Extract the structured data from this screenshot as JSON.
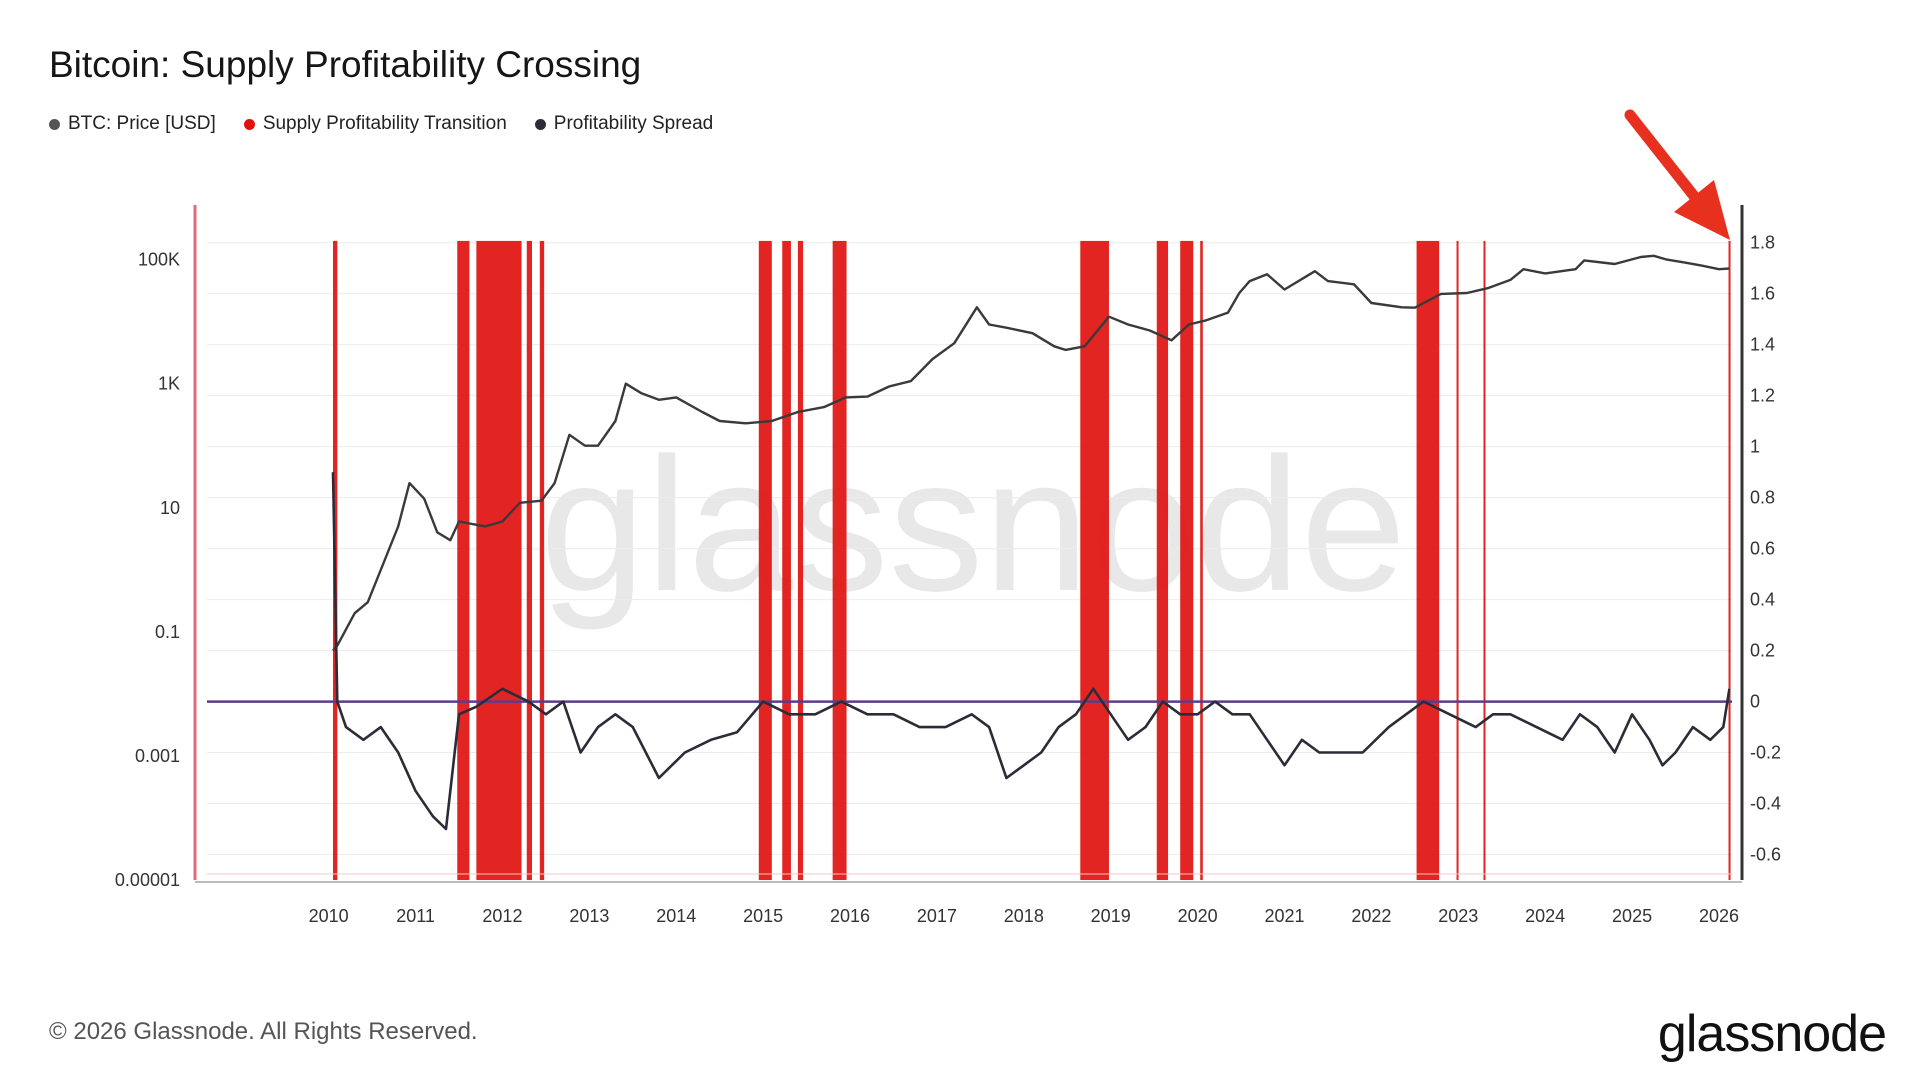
{
  "title": "Bitcoin: Supply Profitability Crossing",
  "legend": [
    {
      "label": "BTC: Price [USD]",
      "color": "#555555"
    },
    {
      "label": "Supply Profitability Transition",
      "color": "#e0120f"
    },
    {
      "label": "Profitability Spread",
      "color": "#2c2c38"
    }
  ],
  "footer": "© 2026 Glassnode. All Rights Reserved.",
  "logo": "glassnode",
  "watermark": "glassnode",
  "chart_data": {
    "type": "line",
    "x_ticks": [
      "2010",
      "2011",
      "2012",
      "2013",
      "2014",
      "2015",
      "2016",
      "2017",
      "2018",
      "2019",
      "2020",
      "2021",
      "2022",
      "2023",
      "2024",
      "2025",
      "2026"
    ],
    "x_range": [
      2009.1,
      2026.65
    ],
    "left_axis": {
      "scale": "log",
      "ticks": [
        "0.00001",
        "0.001",
        "0.1",
        "10",
        "1K",
        "100K"
      ],
      "range": [
        1e-05,
        300000
      ]
    },
    "right_axis": {
      "ticks": [
        "1.8",
        "1.6",
        "1.4",
        "1.2",
        "1",
        "0.8",
        "0.6",
        "0.4",
        "0.2",
        "0",
        "-0.2",
        "-0.4",
        "-0.6"
      ],
      "range": [
        -0.7,
        1.85
      ]
    },
    "reference_line": {
      "value": 0,
      "color": "#5b3c8c"
    },
    "series": [
      {
        "name": "BTC: Price [USD]",
        "axis": "left",
        "color": "#3a3a3a",
        "points": [
          [
            2010.55,
            0.05
          ],
          [
            2010.6,
            0.06
          ],
          [
            2010.8,
            0.2
          ],
          [
            2010.95,
            0.3
          ],
          [
            2011.1,
            1
          ],
          [
            2011.3,
            5
          ],
          [
            2011.43,
            25
          ],
          [
            2011.6,
            14
          ],
          [
            2011.75,
            4
          ],
          [
            2011.9,
            3
          ],
          [
            2012.0,
            6
          ],
          [
            2012.3,
            5
          ],
          [
            2012.5,
            6
          ],
          [
            2012.7,
            12
          ],
          [
            2012.95,
            13
          ],
          [
            2013.1,
            25
          ],
          [
            2013.27,
            150
          ],
          [
            2013.45,
            100
          ],
          [
            2013.6,
            100
          ],
          [
            2013.8,
            250
          ],
          [
            2013.92,
            1000
          ],
          [
            2014.1,
            700
          ],
          [
            2014.3,
            550
          ],
          [
            2014.5,
            600
          ],
          [
            2014.8,
            350
          ],
          [
            2015.0,
            250
          ],
          [
            2015.3,
            230
          ],
          [
            2015.6,
            250
          ],
          [
            2015.9,
            350
          ],
          [
            2016.2,
            420
          ],
          [
            2016.45,
            600
          ],
          [
            2016.7,
            620
          ],
          [
            2016.95,
            900
          ],
          [
            2017.2,
            1100
          ],
          [
            2017.45,
            2500
          ],
          [
            2017.7,
            4500
          ],
          [
            2017.96,
            17000
          ],
          [
            2018.1,
            9000
          ],
          [
            2018.3,
            8000
          ],
          [
            2018.6,
            6500
          ],
          [
            2018.85,
            4000
          ],
          [
            2018.98,
            3500
          ],
          [
            2019.2,
            4000
          ],
          [
            2019.48,
            12000
          ],
          [
            2019.7,
            9000
          ],
          [
            2019.95,
            7200
          ],
          [
            2020.2,
            5000
          ],
          [
            2020.4,
            9000
          ],
          [
            2020.6,
            10500
          ],
          [
            2020.85,
            14000
          ],
          [
            2020.98,
            29000
          ],
          [
            2021.1,
            45000
          ],
          [
            2021.3,
            58000
          ],
          [
            2021.5,
            33000
          ],
          [
            2021.85,
            65000
          ],
          [
            2022.0,
            45000
          ],
          [
            2022.3,
            40000
          ],
          [
            2022.5,
            20000
          ],
          [
            2022.85,
            17000
          ],
          [
            2023.0,
            16800
          ],
          [
            2023.3,
            28000
          ],
          [
            2023.6,
            29000
          ],
          [
            2023.85,
            35000
          ],
          [
            2024.1,
            47000
          ],
          [
            2024.25,
            70000
          ],
          [
            2024.5,
            60000
          ],
          [
            2024.85,
            70000
          ],
          [
            2024.95,
            97000
          ],
          [
            2025.3,
            85000
          ],
          [
            2025.6,
            110000
          ],
          [
            2025.75,
            115000
          ],
          [
            2025.9,
            100000
          ],
          [
            2026.1,
            90000
          ],
          [
            2026.3,
            80000
          ],
          [
            2026.5,
            70000
          ],
          [
            2026.62,
            72000
          ]
        ]
      },
      {
        "name": "Profitability Spread",
        "axis": "right",
        "color": "#2c2c38",
        "points": [
          [
            2010.55,
            0.9
          ],
          [
            2010.6,
            0.0
          ],
          [
            2010.7,
            -0.1
          ],
          [
            2010.9,
            -0.15
          ],
          [
            2011.1,
            -0.1
          ],
          [
            2011.3,
            -0.2
          ],
          [
            2011.5,
            -0.35
          ],
          [
            2011.7,
            -0.45
          ],
          [
            2011.85,
            -0.5
          ],
          [
            2012.0,
            -0.05
          ],
          [
            2012.2,
            -0.02
          ],
          [
            2012.5,
            0.05
          ],
          [
            2012.8,
            0.0
          ],
          [
            2013.0,
            -0.05
          ],
          [
            2013.2,
            0.0
          ],
          [
            2013.4,
            -0.2
          ],
          [
            2013.6,
            -0.1
          ],
          [
            2013.8,
            -0.05
          ],
          [
            2014.0,
            -0.1
          ],
          [
            2014.3,
            -0.3
          ],
          [
            2014.6,
            -0.2
          ],
          [
            2014.9,
            -0.15
          ],
          [
            2015.2,
            -0.12
          ],
          [
            2015.5,
            0.0
          ],
          [
            2015.8,
            -0.05
          ],
          [
            2016.1,
            -0.05
          ],
          [
            2016.4,
            0.0
          ],
          [
            2016.7,
            -0.05
          ],
          [
            2017.0,
            -0.05
          ],
          [
            2017.3,
            -0.1
          ],
          [
            2017.6,
            -0.1
          ],
          [
            2017.9,
            -0.05
          ],
          [
            2018.1,
            -0.1
          ],
          [
            2018.3,
            -0.3
          ],
          [
            2018.5,
            -0.25
          ],
          [
            2018.7,
            -0.2
          ],
          [
            2018.9,
            -0.1
          ],
          [
            2019.1,
            -0.05
          ],
          [
            2019.3,
            0.05
          ],
          [
            2019.5,
            -0.05
          ],
          [
            2019.7,
            -0.15
          ],
          [
            2019.9,
            -0.1
          ],
          [
            2020.1,
            0.0
          ],
          [
            2020.3,
            -0.05
          ],
          [
            2020.5,
            -0.05
          ],
          [
            2020.7,
            0.0
          ],
          [
            2020.9,
            -0.05
          ],
          [
            2021.1,
            -0.05
          ],
          [
            2021.3,
            -0.15
          ],
          [
            2021.5,
            -0.25
          ],
          [
            2021.7,
            -0.15
          ],
          [
            2021.9,
            -0.2
          ],
          [
            2022.1,
            -0.2
          ],
          [
            2022.4,
            -0.2
          ],
          [
            2022.7,
            -0.1
          ],
          [
            2022.9,
            -0.05
          ],
          [
            2023.1,
            0.0
          ],
          [
            2023.4,
            -0.05
          ],
          [
            2023.7,
            -0.1
          ],
          [
            2023.9,
            -0.05
          ],
          [
            2024.1,
            -0.05
          ],
          [
            2024.4,
            -0.1
          ],
          [
            2024.7,
            -0.15
          ],
          [
            2024.9,
            -0.05
          ],
          [
            2025.1,
            -0.1
          ],
          [
            2025.3,
            -0.2
          ],
          [
            2025.5,
            -0.05
          ],
          [
            2025.7,
            -0.15
          ],
          [
            2025.85,
            -0.25
          ],
          [
            2026.0,
            -0.2
          ],
          [
            2026.2,
            -0.1
          ],
          [
            2026.4,
            -0.15
          ],
          [
            2026.55,
            -0.1
          ],
          [
            2026.62,
            0.05
          ]
        ]
      }
    ],
    "transition_bands": [
      [
        2010.55,
        2010.6
      ],
      [
        2011.98,
        2012.12
      ],
      [
        2012.2,
        2012.72
      ],
      [
        2012.78,
        2012.84
      ],
      [
        2012.93,
        2012.98
      ],
      [
        2015.45,
        2015.6
      ],
      [
        2015.72,
        2015.82
      ],
      [
        2015.9,
        2015.96
      ],
      [
        2016.3,
        2016.46
      ],
      [
        2019.15,
        2019.48
      ],
      [
        2020.03,
        2020.16
      ],
      [
        2020.3,
        2020.45
      ],
      [
        2020.53,
        2020.56
      ],
      [
        2023.02,
        2023.28
      ],
      [
        2023.48,
        2023.5
      ],
      [
        2023.79,
        2023.81
      ],
      [
        2026.61,
        2026.63
      ]
    ],
    "transition_color": "#e0120f"
  }
}
